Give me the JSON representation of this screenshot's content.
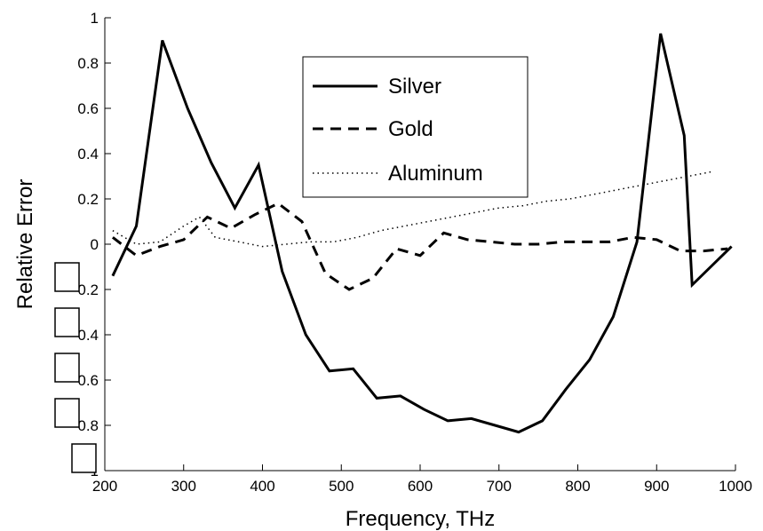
{
  "chart_data": {
    "type": "line",
    "xlabel": "Frequency, THz",
    "ylabel": "Relative Error",
    "xlim": [
      200,
      1000
    ],
    "ylim": [
      -1,
      1
    ],
    "grid": false,
    "legend_position": "top-center",
    "x_ticks": [
      "200",
      "300",
      "400",
      "500",
      "600",
      "700",
      "800",
      "900",
      "1000"
    ],
    "y_ticks": [
      "1",
      "0.8",
      "0.6",
      "0.4",
      "0.2",
      "0",
      "0.2",
      "0.4",
      "0.6",
      "0.8",
      "1"
    ],
    "series": [
      {
        "name": "Silver",
        "style": "solid",
        "x": [
          210,
          240,
          273,
          305,
          335,
          365,
          395,
          425,
          455,
          485,
          515,
          545,
          575,
          605,
          635,
          665,
          695,
          725,
          755,
          785,
          815,
          845,
          875,
          905,
          935,
          945,
          995
        ],
        "y": [
          -0.14,
          0.08,
          0.9,
          0.6,
          0.36,
          0.16,
          0.35,
          -0.12,
          -0.4,
          -0.56,
          -0.55,
          -0.68,
          -0.67,
          -0.73,
          -0.78,
          -0.77,
          -0.8,
          -0.83,
          -0.78,
          -0.64,
          -0.51,
          -0.32,
          0.01,
          0.93,
          0.48,
          -0.18,
          -0.01
        ]
      },
      {
        "name": "Gold",
        "style": "dashed",
        "x": [
          210,
          240,
          270,
          300,
          330,
          360,
          390,
          420,
          450,
          480,
          510,
          540,
          570,
          600,
          630,
          660,
          690,
          720,
          750,
          780,
          810,
          840,
          870,
          900,
          930,
          960,
          990
        ],
        "y": [
          0.03,
          -0.05,
          -0.01,
          0.02,
          0.12,
          0.07,
          0.13,
          0.18,
          0.1,
          -0.13,
          -0.2,
          -0.15,
          -0.02,
          -0.05,
          0.05,
          0.02,
          0.01,
          0.0,
          0.0,
          0.01,
          0.01,
          0.01,
          0.03,
          0.02,
          -0.03,
          -0.03,
          -0.02
        ]
      },
      {
        "name": "Aluminum",
        "style": "dotted",
        "x": [
          210,
          240,
          270,
          300,
          320,
          340,
          370,
          400,
          430,
          460,
          490,
          520,
          550,
          580,
          610,
          640,
          670,
          700,
          730,
          760,
          790,
          820,
          850,
          880,
          910,
          940,
          970
        ],
        "y": [
          0.06,
          0.0,
          0.01,
          0.08,
          0.12,
          0.03,
          0.01,
          -0.01,
          0.0,
          0.01,
          0.01,
          0.03,
          0.06,
          0.08,
          0.1,
          0.12,
          0.14,
          0.16,
          0.17,
          0.19,
          0.2,
          0.22,
          0.24,
          0.26,
          0.28,
          0.3,
          0.32
        ]
      }
    ]
  }
}
